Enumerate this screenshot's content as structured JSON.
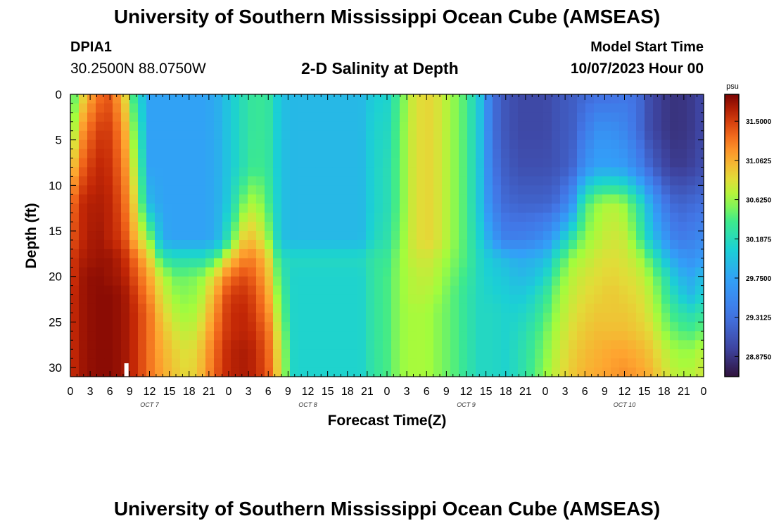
{
  "header": {
    "title": "University of Southern Mississippi Ocean Cube (AMSEAS)",
    "station": "DPIA1",
    "coords": "30.2500N  88.0750W",
    "plot_title": "2-D Salinity at Depth",
    "model_start_label": "Model Start Time",
    "model_start_value": "10/07/2023 Hour 00"
  },
  "footer": {
    "title": "University of Southern Mississippi Ocean Cube (AMSEAS)"
  },
  "chart_data": {
    "type": "heatmap",
    "title": "2-D Salinity at Depth",
    "xlabel": "Forecast Time(Z)",
    "ylabel": "Depth (ft)",
    "x_range_hours": [
      0,
      96
    ],
    "x_tick_step_hours": 3,
    "x_tick_labels": [
      "0",
      "3",
      "6",
      "9",
      "12",
      "15",
      "18",
      "21",
      "0",
      "3",
      "6",
      "9",
      "12",
      "15",
      "18",
      "21",
      "0",
      "3",
      "6",
      "9",
      "12",
      "15",
      "18",
      "21",
      "0",
      "3",
      "6",
      "9",
      "12",
      "15",
      "18",
      "21",
      "0"
    ],
    "day_labels": [
      {
        "label": "OCT 7",
        "hour": 12
      },
      {
        "label": "OCT 8",
        "hour": 36
      },
      {
        "label": "OCT 9",
        "hour": 60
      },
      {
        "label": "OCT 10",
        "hour": 84
      }
    ],
    "y_range_ft": [
      0,
      31
    ],
    "y_ticks": [
      0,
      5,
      10,
      15,
      20,
      25,
      30
    ],
    "current_time_marker_hour": 8.5,
    "colorbar": {
      "unit": "psu",
      "range": [
        28.65,
        31.8
      ],
      "tick_values": [
        31.5,
        31.0625,
        30.625,
        30.1875,
        29.75,
        29.3125,
        28.875
      ],
      "tick_labels": [
        "31.5000",
        "31.0625",
        "30.6250",
        "30.1875",
        "29.7500",
        "29.3125",
        "28.8750"
      ]
    },
    "depth_ft": [
      0,
      4,
      8,
      12,
      16,
      18,
      20,
      22,
      24,
      26,
      28,
      31
    ],
    "time_h": [
      0,
      2,
      4,
      6,
      8,
      10,
      12,
      14,
      16,
      18,
      20,
      22,
      24,
      26,
      28,
      30,
      32,
      34,
      36,
      38,
      40,
      42,
      44,
      46,
      48,
      50,
      52,
      54,
      56,
      58,
      60,
      62,
      64,
      66,
      68,
      70,
      72,
      74,
      76,
      78,
      80,
      82,
      84,
      86,
      88,
      90,
      92,
      94,
      96
    ],
    "salinity_psu": [
      [
        30.3,
        30.9,
        31.3,
        31.4,
        31.0,
        30.2,
        29.75,
        29.75,
        29.75,
        29.75,
        29.75,
        29.8,
        30.0,
        30.2,
        30.35,
        30.3,
        29.95,
        29.9,
        29.9,
        29.9,
        29.9,
        29.9,
        29.9,
        30.05,
        30.1,
        30.45,
        30.8,
        30.9,
        30.8,
        30.6,
        30.4,
        30.0,
        29.3,
        29.1,
        29.0,
        29.0,
        29.0,
        29.1,
        29.15,
        29.25,
        29.3,
        29.3,
        29.35,
        29.3,
        29.0,
        28.9,
        28.85,
        28.9,
        29.0
      ],
      [
        30.5,
        31.2,
        31.5,
        31.5,
        31.2,
        30.4,
        29.75,
        29.75,
        29.75,
        29.75,
        29.75,
        29.8,
        30.0,
        30.2,
        30.35,
        30.3,
        29.95,
        29.9,
        29.9,
        29.9,
        29.9,
        29.9,
        29.9,
        30.1,
        30.15,
        30.5,
        30.8,
        30.9,
        30.8,
        30.6,
        30.4,
        30.0,
        29.3,
        29.1,
        29.0,
        29.0,
        29.0,
        29.1,
        29.15,
        29.4,
        29.6,
        29.6,
        29.5,
        29.3,
        29.0,
        28.9,
        28.85,
        28.9,
        29.0
      ],
      [
        30.9,
        31.4,
        31.6,
        31.55,
        31.3,
        30.6,
        29.75,
        29.75,
        29.75,
        29.75,
        29.75,
        29.8,
        30.0,
        30.2,
        30.4,
        30.3,
        29.95,
        29.9,
        29.9,
        29.9,
        29.9,
        29.9,
        29.9,
        30.1,
        30.2,
        30.5,
        30.8,
        30.9,
        30.8,
        30.6,
        30.4,
        30.0,
        29.35,
        29.15,
        29.05,
        29.05,
        29.05,
        29.1,
        29.2,
        29.6,
        29.75,
        29.75,
        29.7,
        29.5,
        29.2,
        29.0,
        28.9,
        28.95,
        29.05
      ],
      [
        31.3,
        31.6,
        31.65,
        31.6,
        31.4,
        30.8,
        29.9,
        29.75,
        29.75,
        29.75,
        29.75,
        29.8,
        30.05,
        30.5,
        30.7,
        30.4,
        29.95,
        29.9,
        29.9,
        29.9,
        29.9,
        29.9,
        29.9,
        30.1,
        30.2,
        30.5,
        30.8,
        30.9,
        30.8,
        30.6,
        30.4,
        30.0,
        29.45,
        29.25,
        29.2,
        29.2,
        29.2,
        29.3,
        29.6,
        30.4,
        30.6,
        30.7,
        30.6,
        30.3,
        29.8,
        29.4,
        29.2,
        29.25,
        29.3
      ],
      [
        31.4,
        31.6,
        31.7,
        31.6,
        31.5,
        31.0,
        30.6,
        29.8,
        29.75,
        29.75,
        29.75,
        29.8,
        30.3,
        30.9,
        31.0,
        30.6,
        29.95,
        29.9,
        29.9,
        29.9,
        29.9,
        29.9,
        29.9,
        30.15,
        30.25,
        30.55,
        30.8,
        30.9,
        30.8,
        30.6,
        30.4,
        30.1,
        29.7,
        29.45,
        29.45,
        29.5,
        29.6,
        29.9,
        30.3,
        30.6,
        30.7,
        30.8,
        30.75,
        30.5,
        30.0,
        29.7,
        29.4,
        29.45,
        29.55
      ],
      [
        31.5,
        31.65,
        31.7,
        31.7,
        31.6,
        31.3,
        30.9,
        30.3,
        30.2,
        30.2,
        30.2,
        30.4,
        30.9,
        31.2,
        31.25,
        30.9,
        30.2,
        30.15,
        30.15,
        30.15,
        30.15,
        30.15,
        30.15,
        30.3,
        30.35,
        30.6,
        30.75,
        30.8,
        30.7,
        30.55,
        30.4,
        30.15,
        30.0,
        29.9,
        29.8,
        29.85,
        29.9,
        30.3,
        30.6,
        30.7,
        30.8,
        30.85,
        30.8,
        30.7,
        30.4,
        30.0,
        29.7,
        29.6,
        29.7
      ],
      [
        31.5,
        31.7,
        31.75,
        31.7,
        31.65,
        31.4,
        31.1,
        30.7,
        30.5,
        30.5,
        30.6,
        30.9,
        31.3,
        31.45,
        31.35,
        31.0,
        30.3,
        30.1,
        30.1,
        30.1,
        30.1,
        30.1,
        30.1,
        30.3,
        30.4,
        30.6,
        30.7,
        30.75,
        30.65,
        30.5,
        30.35,
        30.15,
        30.05,
        30.0,
        29.9,
        29.95,
        30.1,
        30.5,
        30.7,
        30.8,
        30.85,
        30.9,
        30.85,
        30.8,
        30.6,
        30.3,
        29.9,
        29.8,
        29.95
      ],
      [
        31.55,
        31.7,
        31.75,
        31.75,
        31.7,
        31.5,
        31.2,
        30.8,
        30.6,
        30.55,
        30.7,
        31.1,
        31.5,
        31.55,
        31.45,
        31.1,
        30.4,
        30.1,
        30.1,
        30.1,
        30.1,
        30.1,
        30.1,
        30.3,
        30.4,
        30.6,
        30.7,
        30.7,
        30.6,
        30.45,
        30.3,
        30.15,
        30.1,
        30.05,
        30.0,
        30.1,
        30.3,
        30.6,
        30.75,
        30.85,
        30.9,
        30.95,
        30.9,
        30.85,
        30.7,
        30.4,
        30.1,
        29.9,
        30.1
      ],
      [
        31.55,
        31.7,
        31.75,
        31.75,
        31.7,
        31.55,
        31.3,
        30.9,
        30.7,
        30.6,
        30.8,
        31.2,
        31.55,
        31.6,
        31.5,
        31.2,
        30.5,
        30.1,
        30.1,
        30.1,
        30.1,
        30.1,
        30.1,
        30.3,
        30.4,
        30.6,
        30.65,
        30.65,
        30.55,
        30.45,
        30.3,
        30.15,
        30.15,
        30.1,
        30.1,
        30.2,
        30.4,
        30.65,
        30.8,
        30.9,
        30.95,
        30.95,
        30.95,
        30.9,
        30.75,
        30.5,
        30.3,
        30.2,
        30.3
      ],
      [
        31.55,
        31.7,
        31.75,
        31.75,
        31.7,
        31.55,
        31.3,
        31.0,
        30.8,
        30.7,
        30.9,
        31.3,
        31.55,
        31.6,
        31.55,
        31.3,
        30.6,
        30.1,
        30.1,
        30.1,
        30.1,
        30.1,
        30.1,
        30.3,
        30.4,
        30.6,
        30.65,
        30.65,
        30.55,
        30.45,
        30.3,
        30.15,
        30.15,
        30.1,
        30.15,
        30.3,
        30.5,
        30.7,
        30.85,
        30.95,
        31.0,
        31.0,
        31.0,
        30.95,
        30.85,
        30.6,
        30.45,
        30.4,
        30.5
      ],
      [
        31.55,
        31.7,
        31.75,
        31.75,
        31.7,
        31.55,
        31.3,
        31.05,
        30.9,
        30.8,
        31.0,
        31.35,
        31.6,
        31.65,
        31.6,
        31.35,
        30.7,
        30.1,
        30.1,
        30.1,
        30.1,
        30.1,
        30.1,
        30.3,
        30.4,
        30.6,
        30.65,
        30.65,
        30.55,
        30.45,
        30.3,
        30.15,
        30.15,
        30.1,
        30.2,
        30.35,
        30.55,
        30.75,
        30.9,
        31.0,
        31.05,
        31.1,
        31.1,
        31.05,
        30.95,
        30.75,
        30.6,
        30.6,
        30.7
      ],
      [
        31.55,
        31.7,
        31.75,
        31.75,
        31.7,
        31.55,
        31.3,
        31.1,
        30.95,
        30.85,
        31.05,
        31.4,
        31.6,
        31.65,
        31.6,
        31.4,
        30.75,
        30.1,
        30.1,
        30.1,
        30.1,
        30.1,
        30.1,
        30.3,
        30.4,
        30.6,
        30.65,
        30.65,
        30.55,
        30.45,
        30.3,
        30.15,
        30.15,
        30.1,
        30.2,
        30.4,
        30.6,
        30.8,
        30.95,
        31.05,
        31.1,
        31.15,
        31.2,
        31.15,
        31.05,
        30.85,
        30.7,
        30.7,
        30.8
      ]
    ]
  }
}
